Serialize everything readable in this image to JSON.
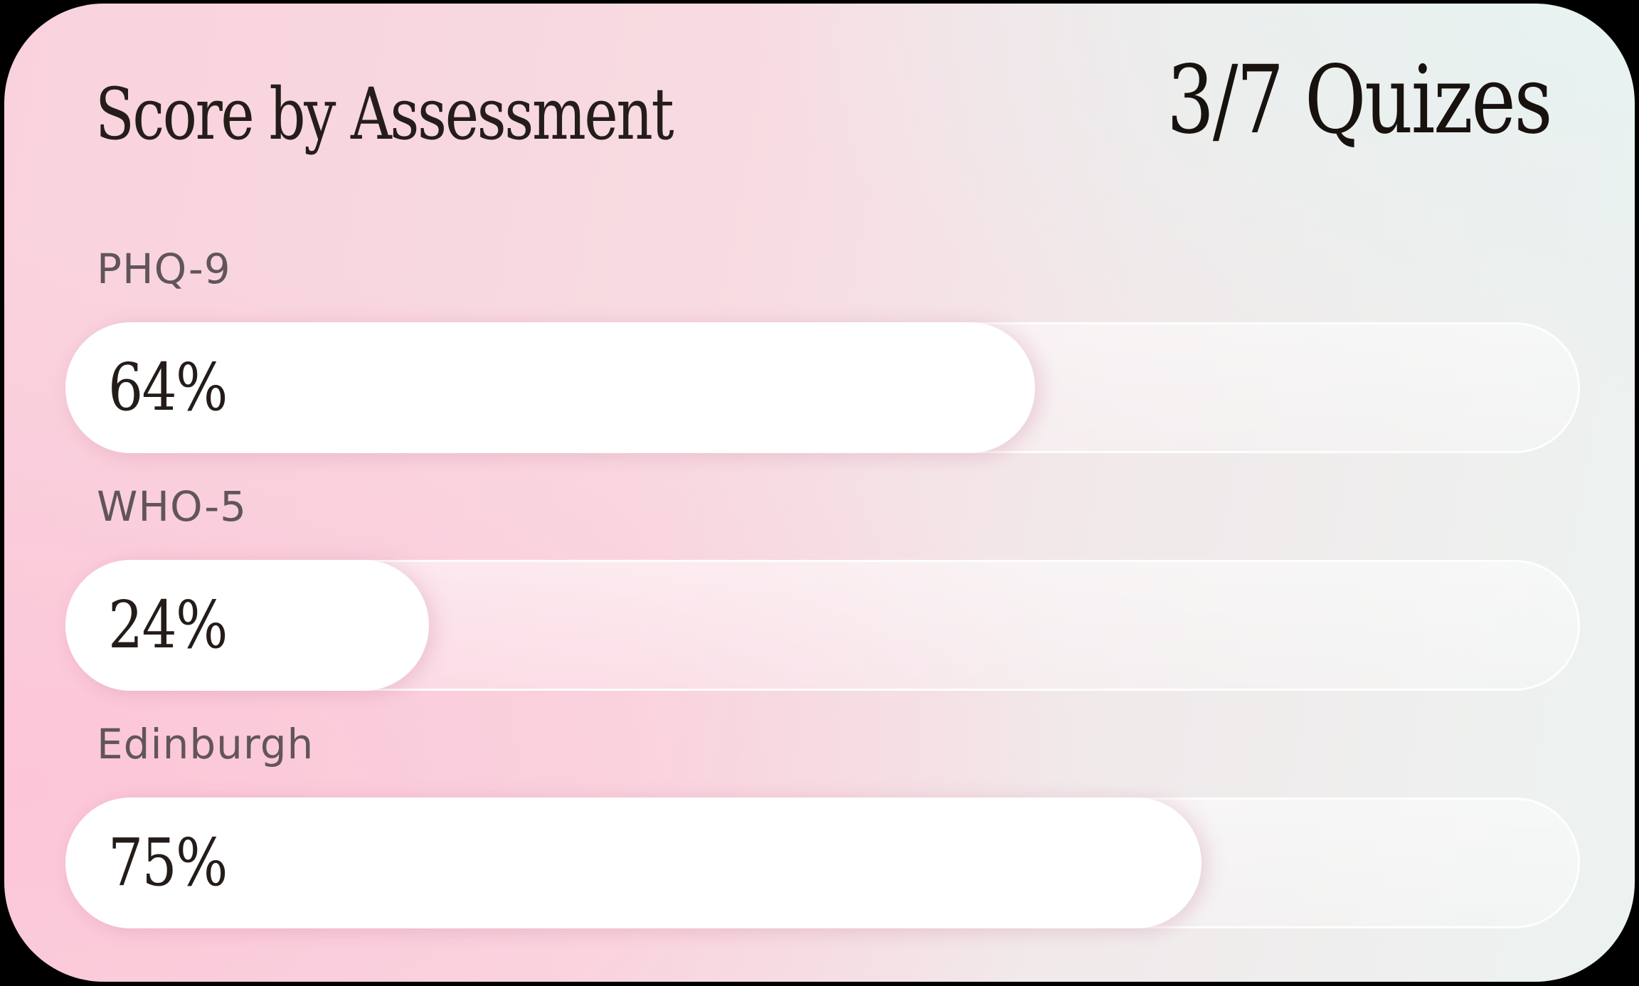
{
  "card": {
    "title": "Score by Assessment",
    "quiz_counter": "3/7 Quizes"
  },
  "bars": [
    {
      "label": "PHQ-9",
      "value": 64,
      "value_label": "64%"
    },
    {
      "label": "WHO-5",
      "value": 24,
      "value_label": "24%"
    },
    {
      "label": "Edinburgh",
      "value": 75,
      "value_label": "75%"
    }
  ],
  "chart_data": {
    "type": "bar",
    "orientation": "horizontal",
    "title": "Score by Assessment",
    "annotation": "3/7 Quizes",
    "categories": [
      "PHQ-9",
      "WHO-5",
      "Edinburgh"
    ],
    "values": [
      64,
      24,
      75
    ],
    "value_labels": [
      "64%",
      "24%",
      "75%"
    ],
    "unit": "%",
    "xlim": [
      0,
      100
    ],
    "grid": false,
    "legend": false
  },
  "colors": {
    "page_background": "#000000",
    "card_pink": "#fbd0dc",
    "card_mint": "#e9f2f1",
    "bar_fill": "#ffffff",
    "bar_track": "rgba(255,255,255,0.40)",
    "label_text": "#61555b",
    "title_text": "#241c19"
  }
}
